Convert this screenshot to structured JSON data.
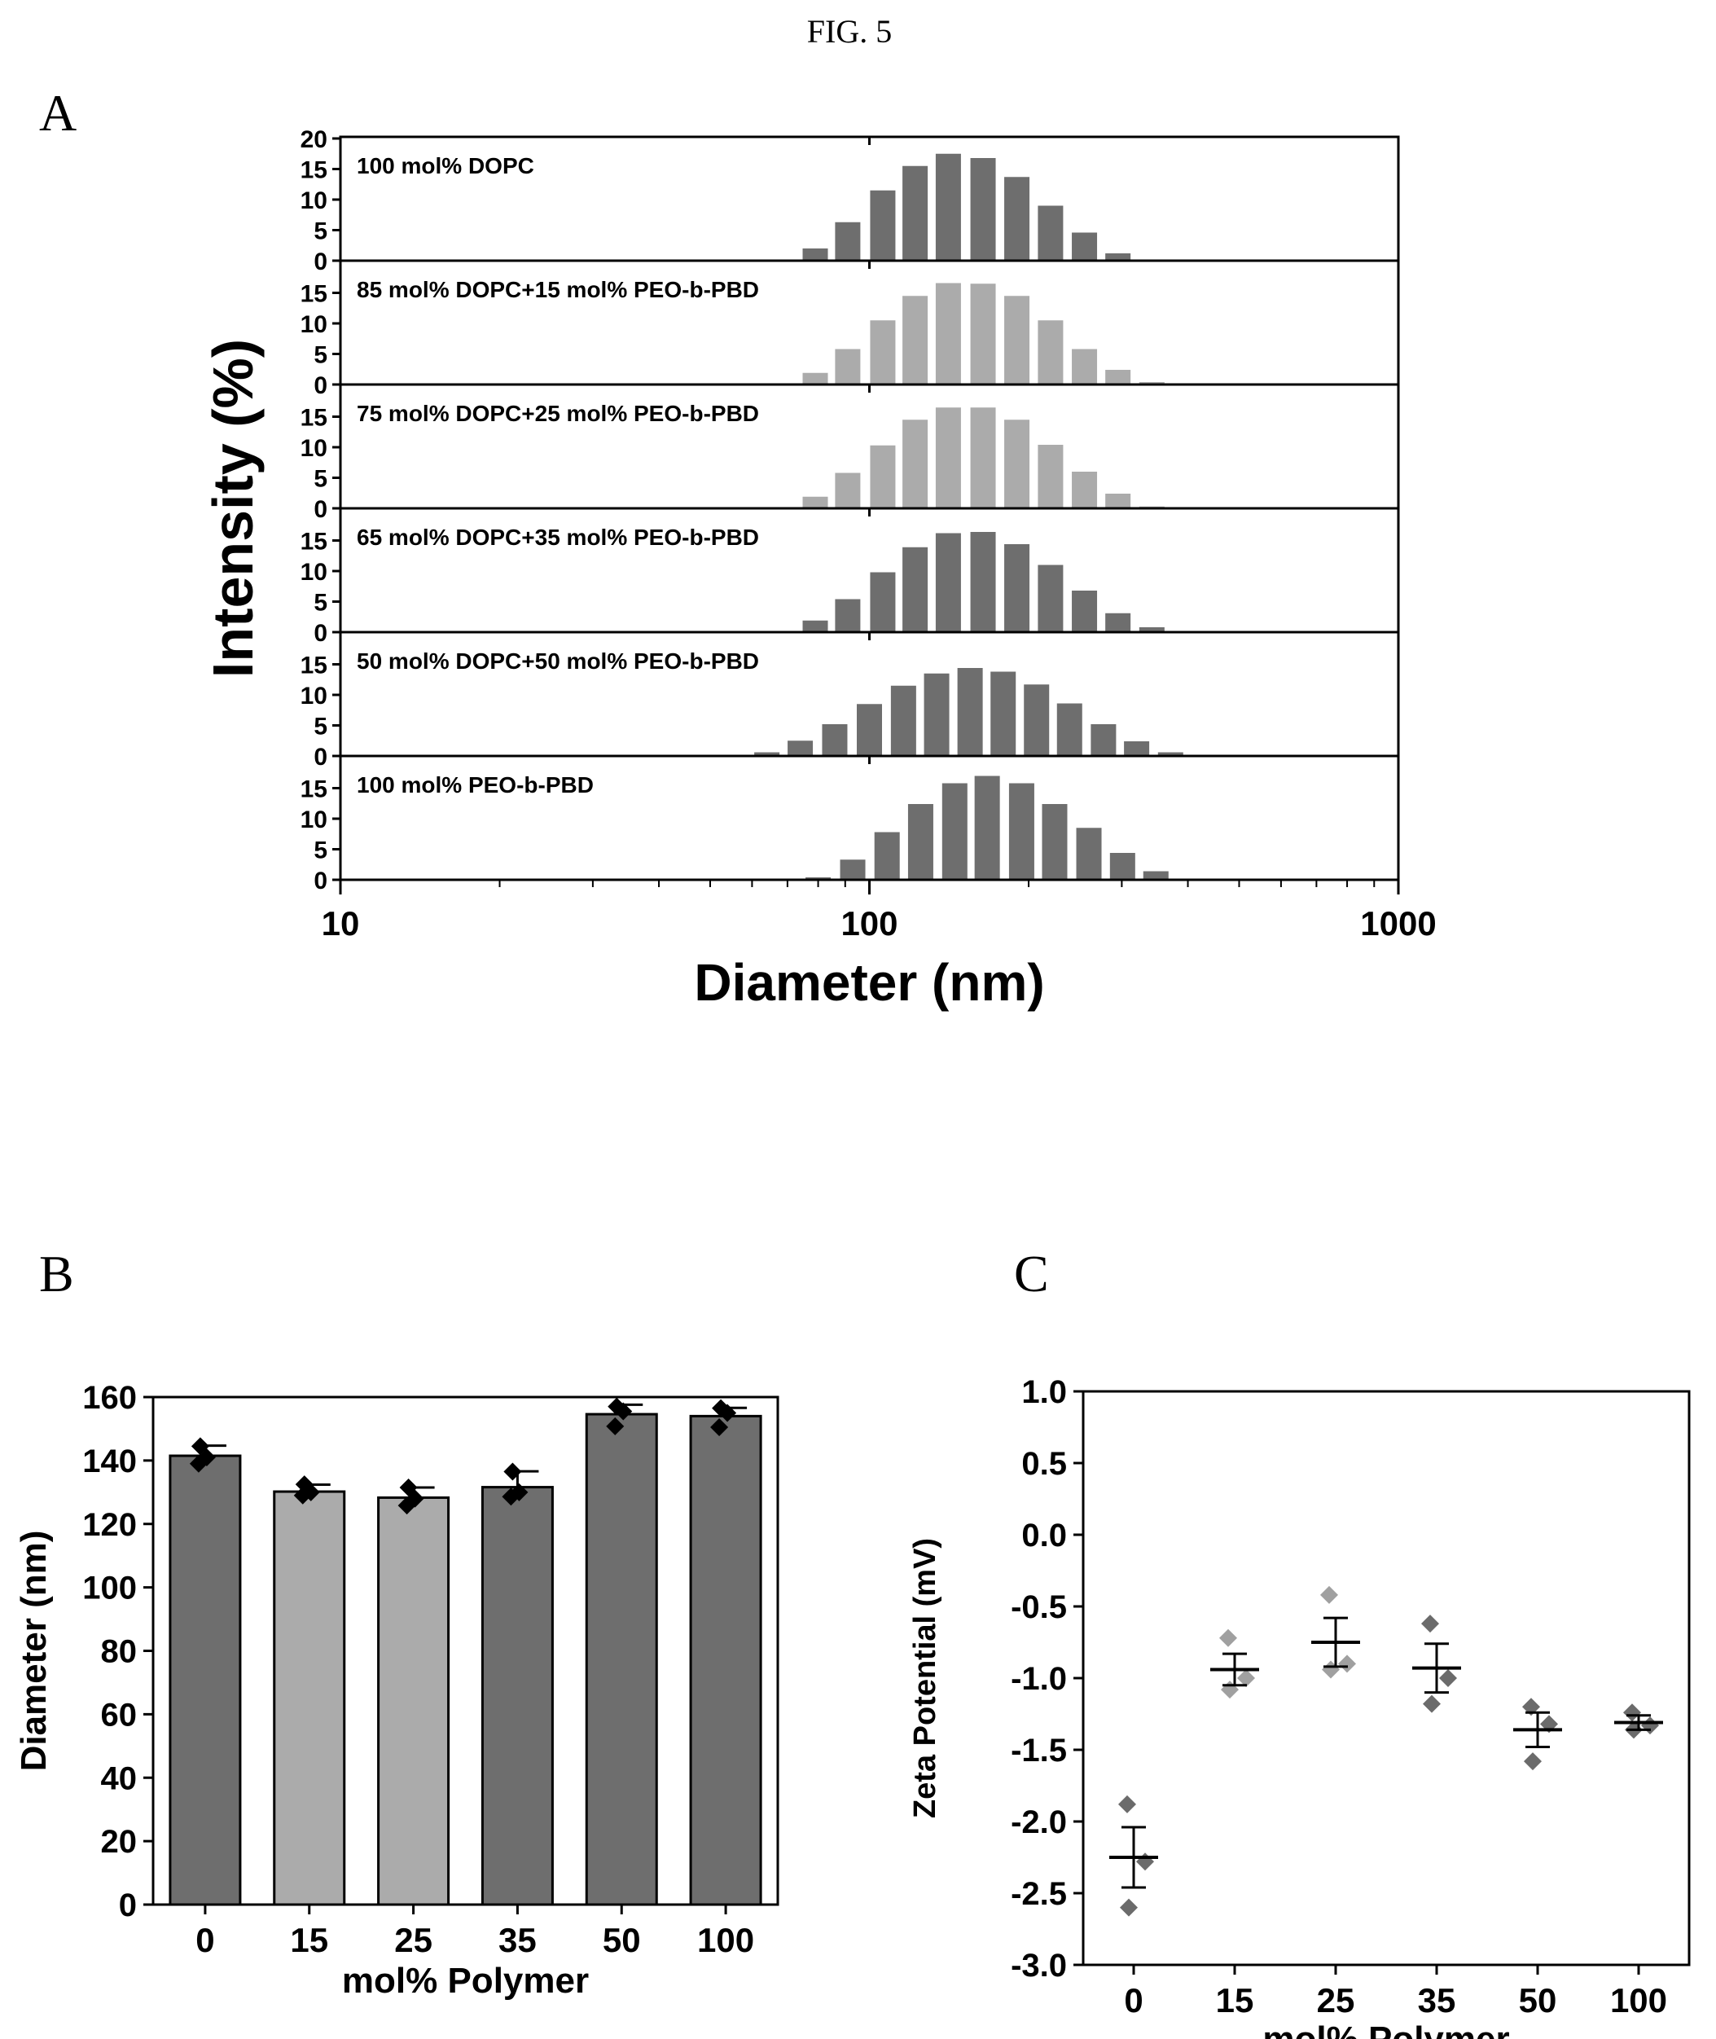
{
  "figure": {
    "title": "FIG. 5",
    "panel_a_letter": "A",
    "panel_b_letter": "B",
    "panel_c_letter": "C"
  },
  "colors": {
    "dark_bar": "#6e6e6e",
    "light_bar": "#ababab",
    "axis": "#000000",
    "dark_marker": "#000000",
    "mid_marker": "#6b6b6b",
    "light_marker": "#a0a0a0"
  },
  "chart_data": [
    {
      "id": "A",
      "type": "bar",
      "x_scale": "log",
      "xlabel": "Diameter (nm)",
      "ylabel": "Intensity (%)",
      "xlim": [
        10,
        1000
      ],
      "xticks": [
        "10",
        "100",
        "1000"
      ],
      "bin_centers": [
        79,
        91,
        106,
        122,
        141,
        164,
        190,
        220,
        255,
        295,
        342
      ],
      "subplots": [
        {
          "label": "100 mol% DOPC",
          "shade": "dark",
          "ylim": [
            0,
            20
          ],
          "yticks": [
            "0",
            "5",
            "10",
            "15",
            "20"
          ],
          "values": [
            2.0,
            6.3,
            11.5,
            15.5,
            17.5,
            16.8,
            13.7,
            9.0,
            4.6,
            1.2,
            0
          ]
        },
        {
          "label": "85 mol% DOPC+15 mol% PEO-b-PBD",
          "shade": "light",
          "ylim": [
            0,
            20
          ],
          "yticks": [
            "0",
            "5",
            "10",
            "15"
          ],
          "values": [
            1.9,
            5.8,
            10.5,
            14.5,
            16.6,
            16.5,
            14.5,
            10.5,
            5.8,
            2.4,
            0.4
          ]
        },
        {
          "label": "75 mol% DOPC+25 mol% PEO-b-PBD",
          "shade": "light",
          "ylim": [
            0,
            20
          ],
          "yticks": [
            "0",
            "5",
            "10",
            "15"
          ],
          "values": [
            1.9,
            5.8,
            10.3,
            14.5,
            16.5,
            16.5,
            14.5,
            10.4,
            6.0,
            2.4,
            0.3
          ]
        },
        {
          "label": "65 mol% DOPC+35 mol% PEO-b-PBD",
          "shade": "dark",
          "ylim": [
            0,
            20
          ],
          "yticks": [
            "0",
            "5",
            "10",
            "15"
          ],
          "values": [
            1.9,
            5.4,
            9.8,
            13.9,
            16.2,
            16.4,
            14.4,
            11.0,
            6.8,
            3.1,
            0.8
          ]
        },
        {
          "label": "50 mol% DOPC+50 mol% PEO-b-PBD",
          "shade": "dark",
          "ylim": [
            0,
            20
          ],
          "yticks": [
            "0",
            "5",
            "10",
            "15"
          ],
          "values": [
            0.6,
            2.5,
            5.2,
            8.5,
            11.5,
            13.5,
            14.4,
            13.8,
            11.7,
            8.6,
            5.2,
            2.4,
            0.6
          ],
          "bin_centers": [
            64,
            74,
            86,
            100,
            116,
            134,
            155,
            179,
            207,
            239,
            277,
            320,
            371
          ]
        },
        {
          "label": "100 mol% PEO-b-PBD",
          "shade": "dark",
          "ylim": [
            0,
            20
          ],
          "yticks": [
            "0",
            "5",
            "10",
            "15"
          ],
          "values": [
            0.4,
            3.3,
            7.8,
            12.4,
            15.8,
            17.0,
            15.8,
            12.4,
            8.5,
            4.4,
            1.4
          ],
          "bin_centers": [
            80,
            93,
            108,
            125,
            145,
            167,
            194,
            224,
            260,
            301,
            348
          ]
        }
      ]
    },
    {
      "id": "B",
      "type": "bar",
      "xlabel": "mol% Polymer",
      "ylabel": "Diameter (nm)",
      "ylim": [
        0,
        160
      ],
      "yticks": [
        "0",
        "20",
        "40",
        "60",
        "80",
        "100",
        "120",
        "140",
        "160"
      ],
      "categories": [
        "0",
        "15",
        "25",
        "35",
        "50",
        "100"
      ],
      "shades": [
        "dark",
        "light",
        "light",
        "dark",
        "dark",
        "dark"
      ],
      "values": [
        141.5,
        130.2,
        128.3,
        131.6,
        154.6,
        154.0
      ],
      "errors": [
        3.2,
        2.2,
        3.2,
        5.0,
        3.0,
        2.6
      ],
      "points": [
        [
          144.5,
          141.0,
          139.0
        ],
        [
          132.5,
          130.0,
          129.0
        ],
        [
          131.5,
          128.0,
          125.8
        ],
        [
          136.5,
          130.0,
          128.6
        ],
        [
          157.0,
          155.5,
          150.8
        ],
        [
          156.5,
          155.0,
          150.5
        ]
      ]
    },
    {
      "id": "C",
      "type": "scatter",
      "xlabel": "mol% Polymer",
      "ylabel": "Zeta Potential (mV)",
      "ylim": [
        -3.0,
        1.0
      ],
      "yticks": [
        "1.0",
        "0.5",
        "0.0",
        "-0.5",
        "-1.0",
        "-1.5",
        "-2.0",
        "-2.5",
        "-3.0"
      ],
      "categories": [
        "0",
        "15",
        "25",
        "35",
        "50",
        "100"
      ],
      "shades": [
        "mid",
        "light",
        "light",
        "mid",
        "mid",
        "mid"
      ],
      "means": [
        -2.25,
        -0.94,
        -0.75,
        -0.93,
        -1.36,
        -1.31
      ],
      "errors": [
        0.21,
        0.11,
        0.17,
        0.17,
        0.12,
        0.05
      ],
      "points": [
        [
          -1.88,
          -2.28,
          -2.6
        ],
        [
          -0.72,
          -1.0,
          -1.08
        ],
        [
          -0.42,
          -0.9,
          -0.94
        ],
        [
          -0.62,
          -1.0,
          -1.18
        ],
        [
          -1.2,
          -1.32,
          -1.58
        ],
        [
          -1.24,
          -1.33,
          -1.36
        ]
      ]
    }
  ]
}
